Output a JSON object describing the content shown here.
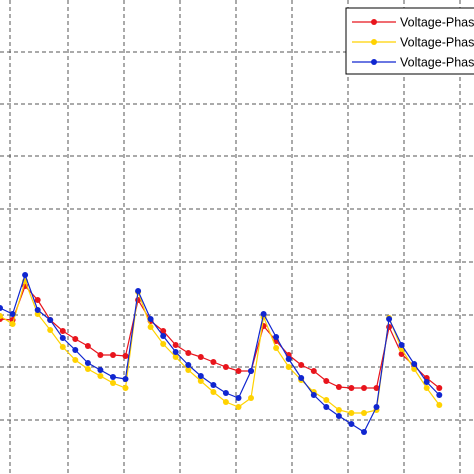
{
  "chart_data": {
    "type": "line",
    "title": "",
    "xlabel": "",
    "ylabel": "",
    "xlim": [
      0,
      48
    ],
    "ylim": [
      0,
      474
    ],
    "grid": true,
    "legend_position": "top-right",
    "series": [
      {
        "name": "Voltage-Phase A",
        "color": "#e8141c",
        "marker": "circle",
        "points": [
          [
            0,
            319
          ],
          [
            1,
            320
          ],
          [
            2,
            286
          ],
          [
            3,
            300
          ],
          [
            4,
            320
          ],
          [
            5,
            331
          ],
          [
            6,
            339
          ],
          [
            7,
            346
          ],
          [
            8,
            355
          ],
          [
            9,
            355
          ],
          [
            10,
            356
          ],
          [
            11,
            300
          ],
          [
            12,
            321
          ],
          [
            13,
            331
          ],
          [
            14,
            345
          ],
          [
            15,
            353
          ],
          [
            16,
            357
          ],
          [
            17,
            362
          ],
          [
            18,
            367
          ],
          [
            19,
            371
          ],
          [
            20,
            371
          ],
          [
            21,
            326
          ],
          [
            22,
            341
          ],
          [
            23,
            355
          ],
          [
            24,
            365
          ],
          [
            25,
            371
          ],
          [
            26,
            381
          ],
          [
            27,
            387
          ],
          [
            28,
            388
          ],
          [
            29,
            388
          ],
          [
            30,
            388
          ],
          [
            31,
            327
          ],
          [
            32,
            354
          ],
          [
            33,
            366
          ],
          [
            34,
            378
          ],
          [
            35,
            388
          ]
        ]
      },
      {
        "name": "Voltage-Phase B",
        "color": "#ffd200",
        "marker": "circle",
        "points": [
          [
            0,
            316
          ],
          [
            1,
            324
          ],
          [
            2,
            281
          ],
          [
            3,
            314
          ],
          [
            4,
            330
          ],
          [
            5,
            347
          ],
          [
            6,
            360
          ],
          [
            7,
            369
          ],
          [
            8,
            376
          ],
          [
            9,
            383
          ],
          [
            10,
            388
          ],
          [
            11,
            292
          ],
          [
            12,
            327
          ],
          [
            13,
            344
          ],
          [
            14,
            357
          ],
          [
            15,
            370
          ],
          [
            16,
            381
          ],
          [
            17,
            392
          ],
          [
            18,
            402
          ],
          [
            19,
            407
          ],
          [
            20,
            398
          ],
          [
            21,
            317
          ],
          [
            22,
            348
          ],
          [
            23,
            367
          ],
          [
            24,
            380
          ],
          [
            25,
            392
          ],
          [
            26,
            400
          ],
          [
            27,
            410
          ],
          [
            28,
            413
          ],
          [
            29,
            413
          ],
          [
            30,
            410
          ],
          [
            31,
            318
          ],
          [
            32,
            349
          ],
          [
            33,
            369
          ],
          [
            34,
            388
          ],
          [
            35,
            405
          ]
        ]
      },
      {
        "name": "Voltage-Phase C",
        "color": "#1026d0",
        "marker": "circle",
        "points": [
          [
            0,
            308
          ],
          [
            1,
            314
          ],
          [
            2,
            275
          ],
          [
            3,
            310
          ],
          [
            4,
            320
          ],
          [
            5,
            338
          ],
          [
            6,
            350
          ],
          [
            7,
            363
          ],
          [
            8,
            370
          ],
          [
            9,
            377
          ],
          [
            10,
            379
          ],
          [
            11,
            291
          ],
          [
            12,
            319
          ],
          [
            13,
            336
          ],
          [
            14,
            352
          ],
          [
            15,
            365
          ],
          [
            16,
            376
          ],
          [
            17,
            385
          ],
          [
            18,
            393
          ],
          [
            19,
            398
          ],
          [
            20,
            371
          ],
          [
            21,
            314
          ],
          [
            22,
            337
          ],
          [
            23,
            359
          ],
          [
            24,
            378
          ],
          [
            25,
            395
          ],
          [
            26,
            407
          ],
          [
            27,
            416
          ],
          [
            28,
            424
          ],
          [
            29,
            432
          ],
          [
            30,
            407
          ],
          [
            31,
            319
          ],
          [
            32,
            345
          ],
          [
            33,
            364
          ],
          [
            34,
            382
          ],
          [
            35,
            395
          ]
        ]
      }
    ]
  }
}
